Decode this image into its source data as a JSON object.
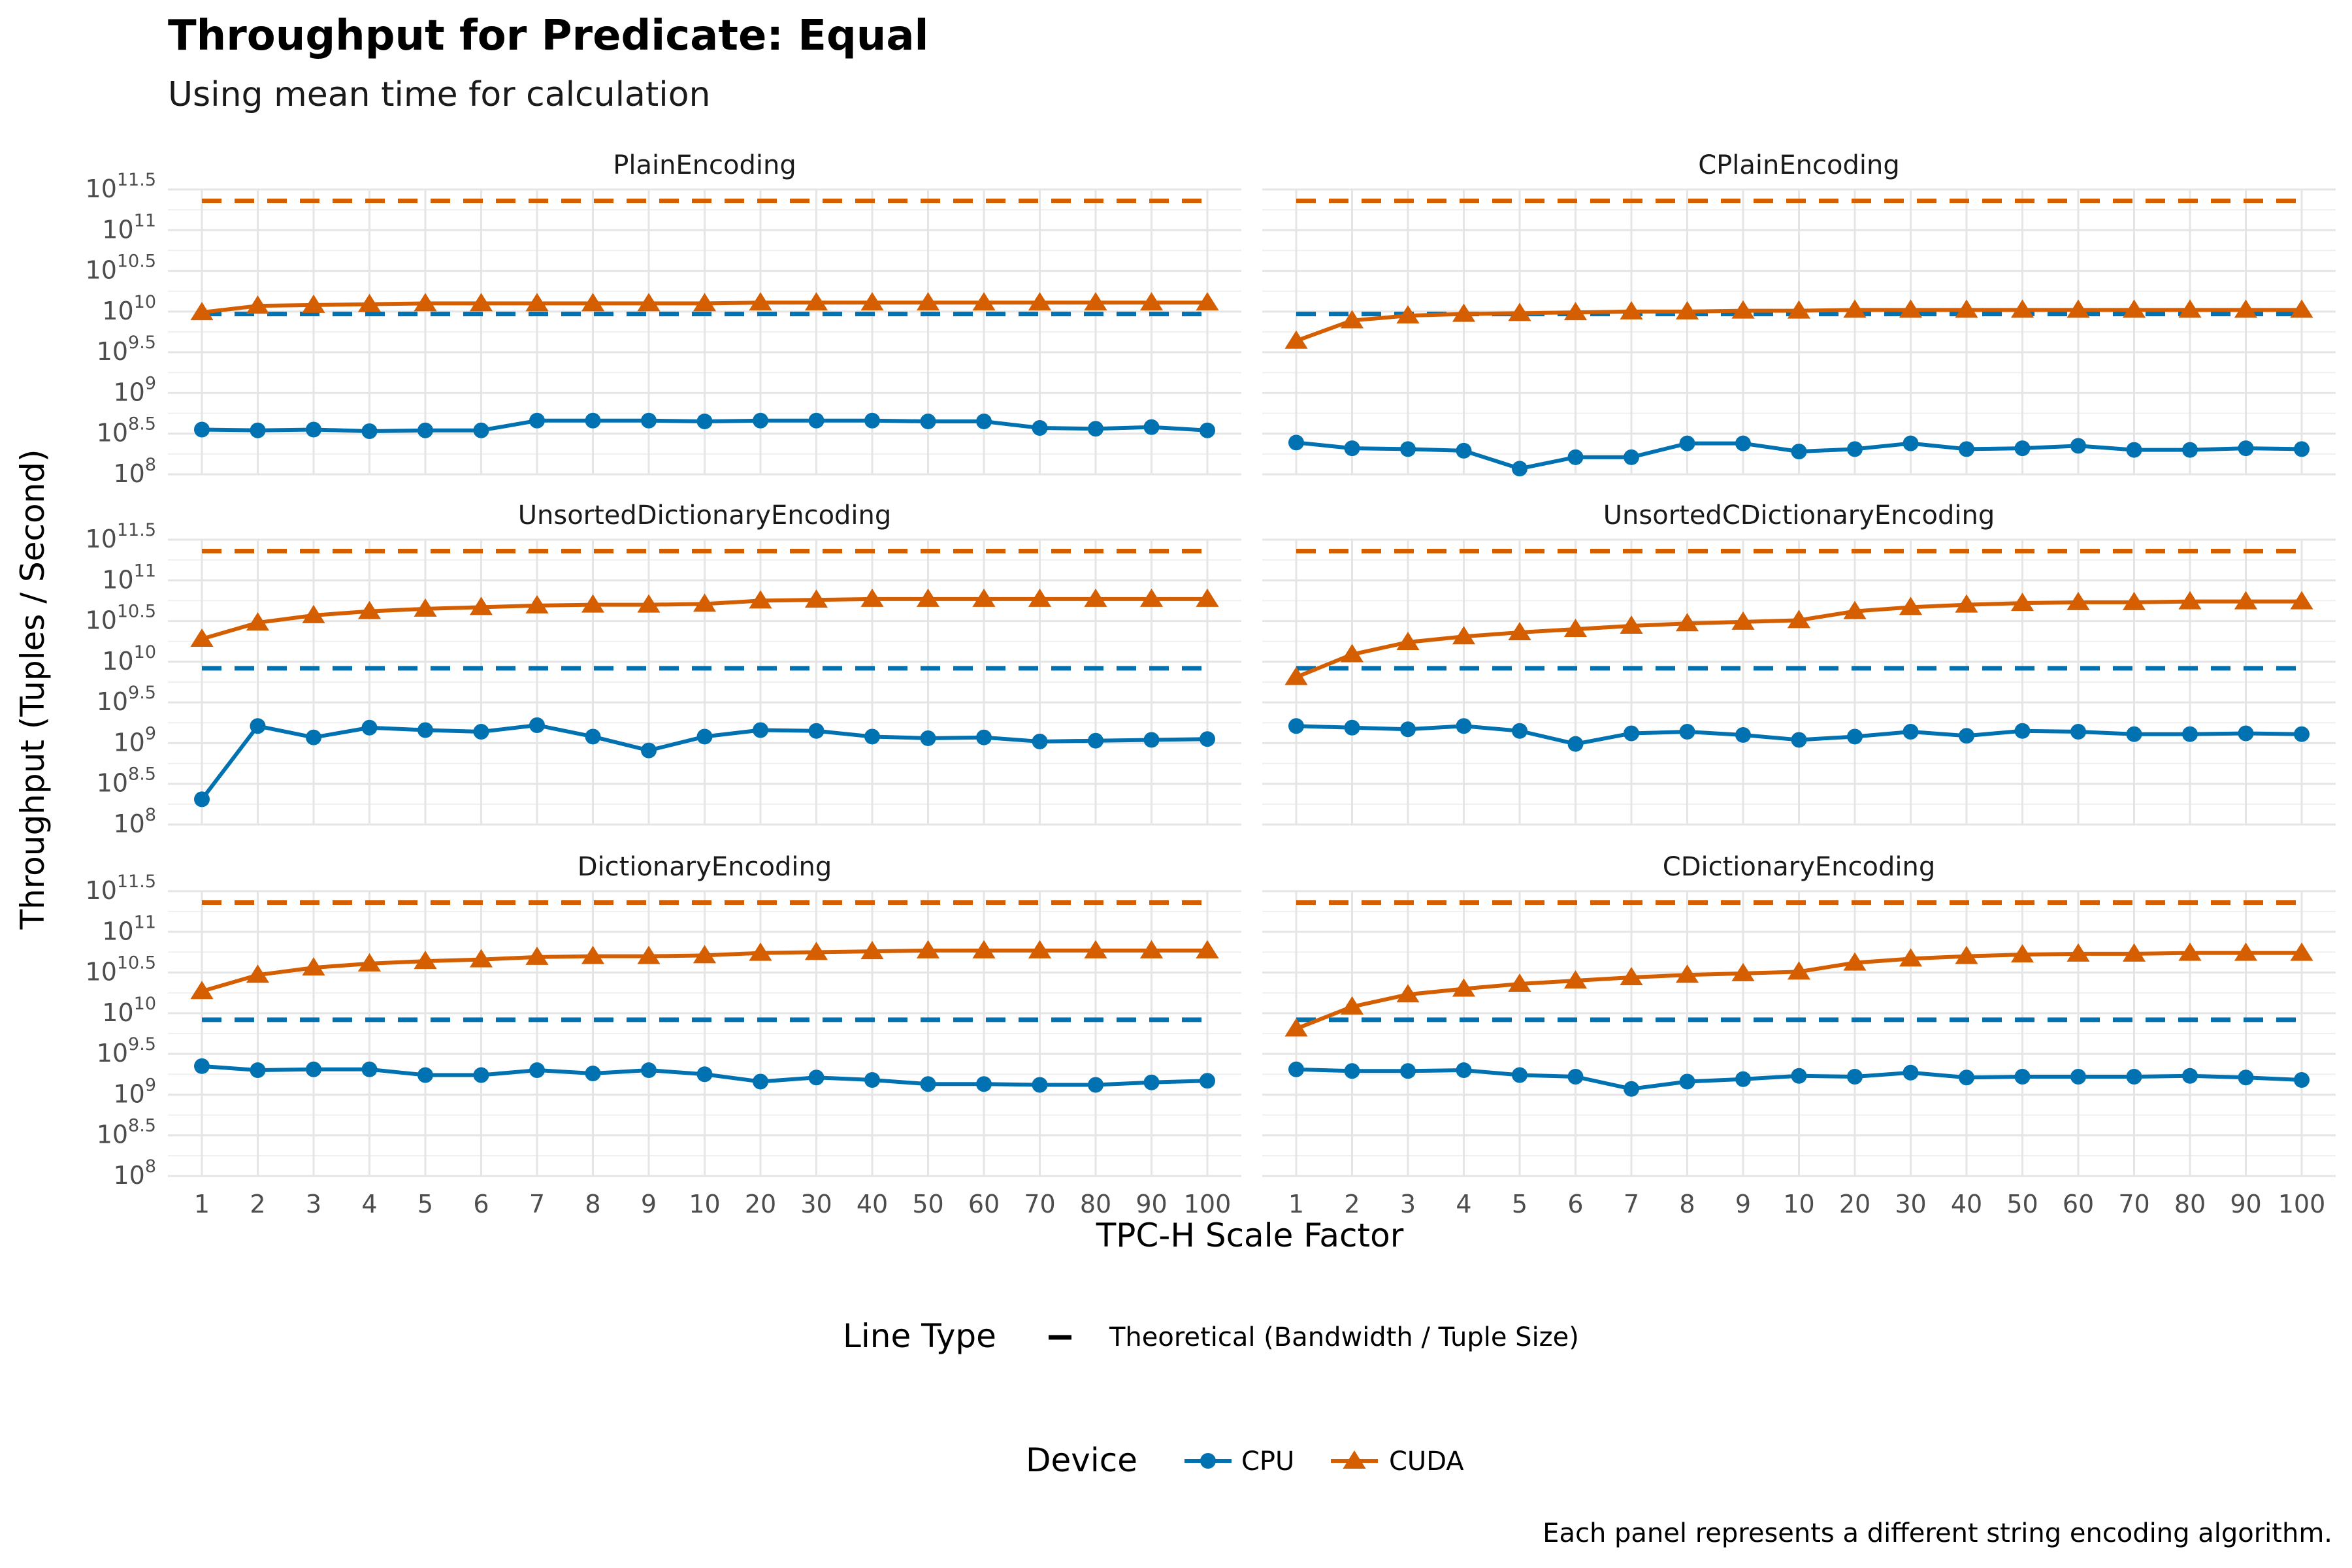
{
  "chart_data": {
    "type": "line",
    "title": "Throughput for Predicate: Equal",
    "subtitle": "Using mean time for calculation",
    "xlabel": "TPC-H Scale Factor",
    "ylabel": "Throughput (Tuples / Second)",
    "caption": "Each panel represents a different string encoding algorithm.",
    "y_scale": "log10",
    "ylim_log10": [
      8,
      11.5
    ],
    "y_ticks_log10": [
      "8",
      "8.5",
      "9",
      "9.5",
      "10",
      "10.5",
      "11",
      "11.5"
    ],
    "y_tick_base": "10",
    "categories": [
      "1",
      "2",
      "3",
      "4",
      "5",
      "6",
      "7",
      "8",
      "9",
      "10",
      "20",
      "30",
      "40",
      "50",
      "60",
      "70",
      "80",
      "90",
      "100"
    ],
    "grid": "on",
    "colors": {
      "CPU": "#0072B2",
      "CUDA": "#D55E00"
    },
    "legend": {
      "position": "bottom",
      "line_type_title": "Line Type",
      "line_type_label": "Theoretical (Bandwidth / Tuple Size)",
      "device_title": "Device",
      "device_labels": [
        "CPU",
        "CUDA"
      ]
    },
    "panels": [
      {
        "name": "PlainEncoding",
        "theoretical_log10": {
          "CPU": 9.97,
          "CUDA": 11.36
        },
        "series": [
          {
            "name": "CPU",
            "values_log10": [
              8.55,
              8.54,
              8.55,
              8.53,
              8.54,
              8.54,
              8.66,
              8.66,
              8.66,
              8.65,
              8.66,
              8.66,
              8.66,
              8.65,
              8.65,
              8.57,
              8.56,
              8.58,
              8.54
            ]
          },
          {
            "name": "CUDA",
            "values_log10": [
              9.99,
              10.07,
              10.08,
              10.09,
              10.1,
              10.1,
              10.1,
              10.1,
              10.1,
              10.1,
              10.11,
              10.11,
              10.11,
              10.11,
              10.11,
              10.11,
              10.11,
              10.11,
              10.11
            ]
          }
        ]
      },
      {
        "name": "CPlainEncoding",
        "theoretical_log10": {
          "CPU": 9.97,
          "CUDA": 11.36
        },
        "series": [
          {
            "name": "CPU",
            "values_log10": [
              8.39,
              8.32,
              8.31,
              8.29,
              8.07,
              8.21,
              8.21,
              8.38,
              8.38,
              8.28,
              8.31,
              8.38,
              8.31,
              8.32,
              8.35,
              8.3,
              8.3,
              8.32,
              8.31
            ]
          },
          {
            "name": "CUDA",
            "values_log10": [
              9.64,
              9.89,
              9.95,
              9.97,
              9.98,
              9.99,
              10.0,
              10.0,
              10.01,
              10.01,
              10.02,
              10.02,
              10.02,
              10.02,
              10.02,
              10.02,
              10.02,
              10.02,
              10.02
            ]
          }
        ]
      },
      {
        "name": "UnsortedDictionaryEncoding",
        "theoretical_log10": {
          "CPU": 9.92,
          "CUDA": 11.36
        },
        "series": [
          {
            "name": "CPU",
            "values_log10": [
              8.31,
              9.21,
              9.07,
              9.19,
              9.16,
              9.14,
              9.22,
              9.08,
              8.91,
              9.08,
              9.16,
              9.15,
              9.08,
              9.06,
              9.07,
              9.02,
              9.03,
              9.04,
              9.05
            ]
          },
          {
            "name": "CUDA",
            "values_log10": [
              10.28,
              10.48,
              10.57,
              10.62,
              10.65,
              10.67,
              10.69,
              10.7,
              10.7,
              10.71,
              10.75,
              10.76,
              10.77,
              10.77,
              10.77,
              10.77,
              10.77,
              10.77,
              10.77
            ]
          }
        ]
      },
      {
        "name": "UnsortedCDictionaryEncoding",
        "theoretical_log10": {
          "CPU": 9.92,
          "CUDA": 11.36
        },
        "series": [
          {
            "name": "CPU",
            "values_log10": [
              9.21,
              9.19,
              9.17,
              9.21,
              9.15,
              8.99,
              9.12,
              9.14,
              9.1,
              9.04,
              9.08,
              9.14,
              9.09,
              9.15,
              9.14,
              9.11,
              9.11,
              9.12,
              9.11
            ]
          },
          {
            "name": "CUDA",
            "values_log10": [
              9.81,
              10.09,
              10.24,
              10.31,
              10.36,
              10.4,
              10.44,
              10.47,
              10.49,
              10.51,
              10.62,
              10.67,
              10.7,
              10.72,
              10.73,
              10.73,
              10.74,
              10.74,
              10.74
            ]
          }
        ]
      },
      {
        "name": "DictionaryEncoding",
        "theoretical_log10": {
          "CPU": 9.92,
          "CUDA": 11.36
        },
        "series": [
          {
            "name": "CPU",
            "values_log10": [
              9.35,
              9.3,
              9.31,
              9.31,
              9.24,
              9.24,
              9.3,
              9.26,
              9.3,
              9.25,
              9.16,
              9.21,
              9.18,
              9.13,
              9.13,
              9.12,
              9.12,
              9.15,
              9.17
            ]
          },
          {
            "name": "CUDA",
            "values_log10": [
              10.27,
              10.47,
              10.56,
              10.61,
              10.64,
              10.66,
              10.69,
              10.7,
              10.7,
              10.71,
              10.74,
              10.75,
              10.76,
              10.77,
              10.77,
              10.77,
              10.77,
              10.77,
              10.77
            ]
          }
        ]
      },
      {
        "name": "CDictionaryEncoding",
        "theoretical_log10": {
          "CPU": 9.92,
          "CUDA": 11.36
        },
        "series": [
          {
            "name": "CPU",
            "values_log10": [
              9.31,
              9.29,
              9.29,
              9.3,
              9.24,
              9.22,
              9.07,
              9.16,
              9.19,
              9.23,
              9.22,
              9.27,
              9.21,
              9.22,
              9.22,
              9.22,
              9.23,
              9.21,
              9.18
            ]
          },
          {
            "name": "CUDA",
            "values_log10": [
              9.81,
              10.08,
              10.23,
              10.3,
              10.36,
              10.4,
              10.44,
              10.47,
              10.49,
              10.51,
              10.62,
              10.67,
              10.7,
              10.72,
              10.73,
              10.73,
              10.74,
              10.74,
              10.74
            ]
          }
        ]
      }
    ]
  }
}
